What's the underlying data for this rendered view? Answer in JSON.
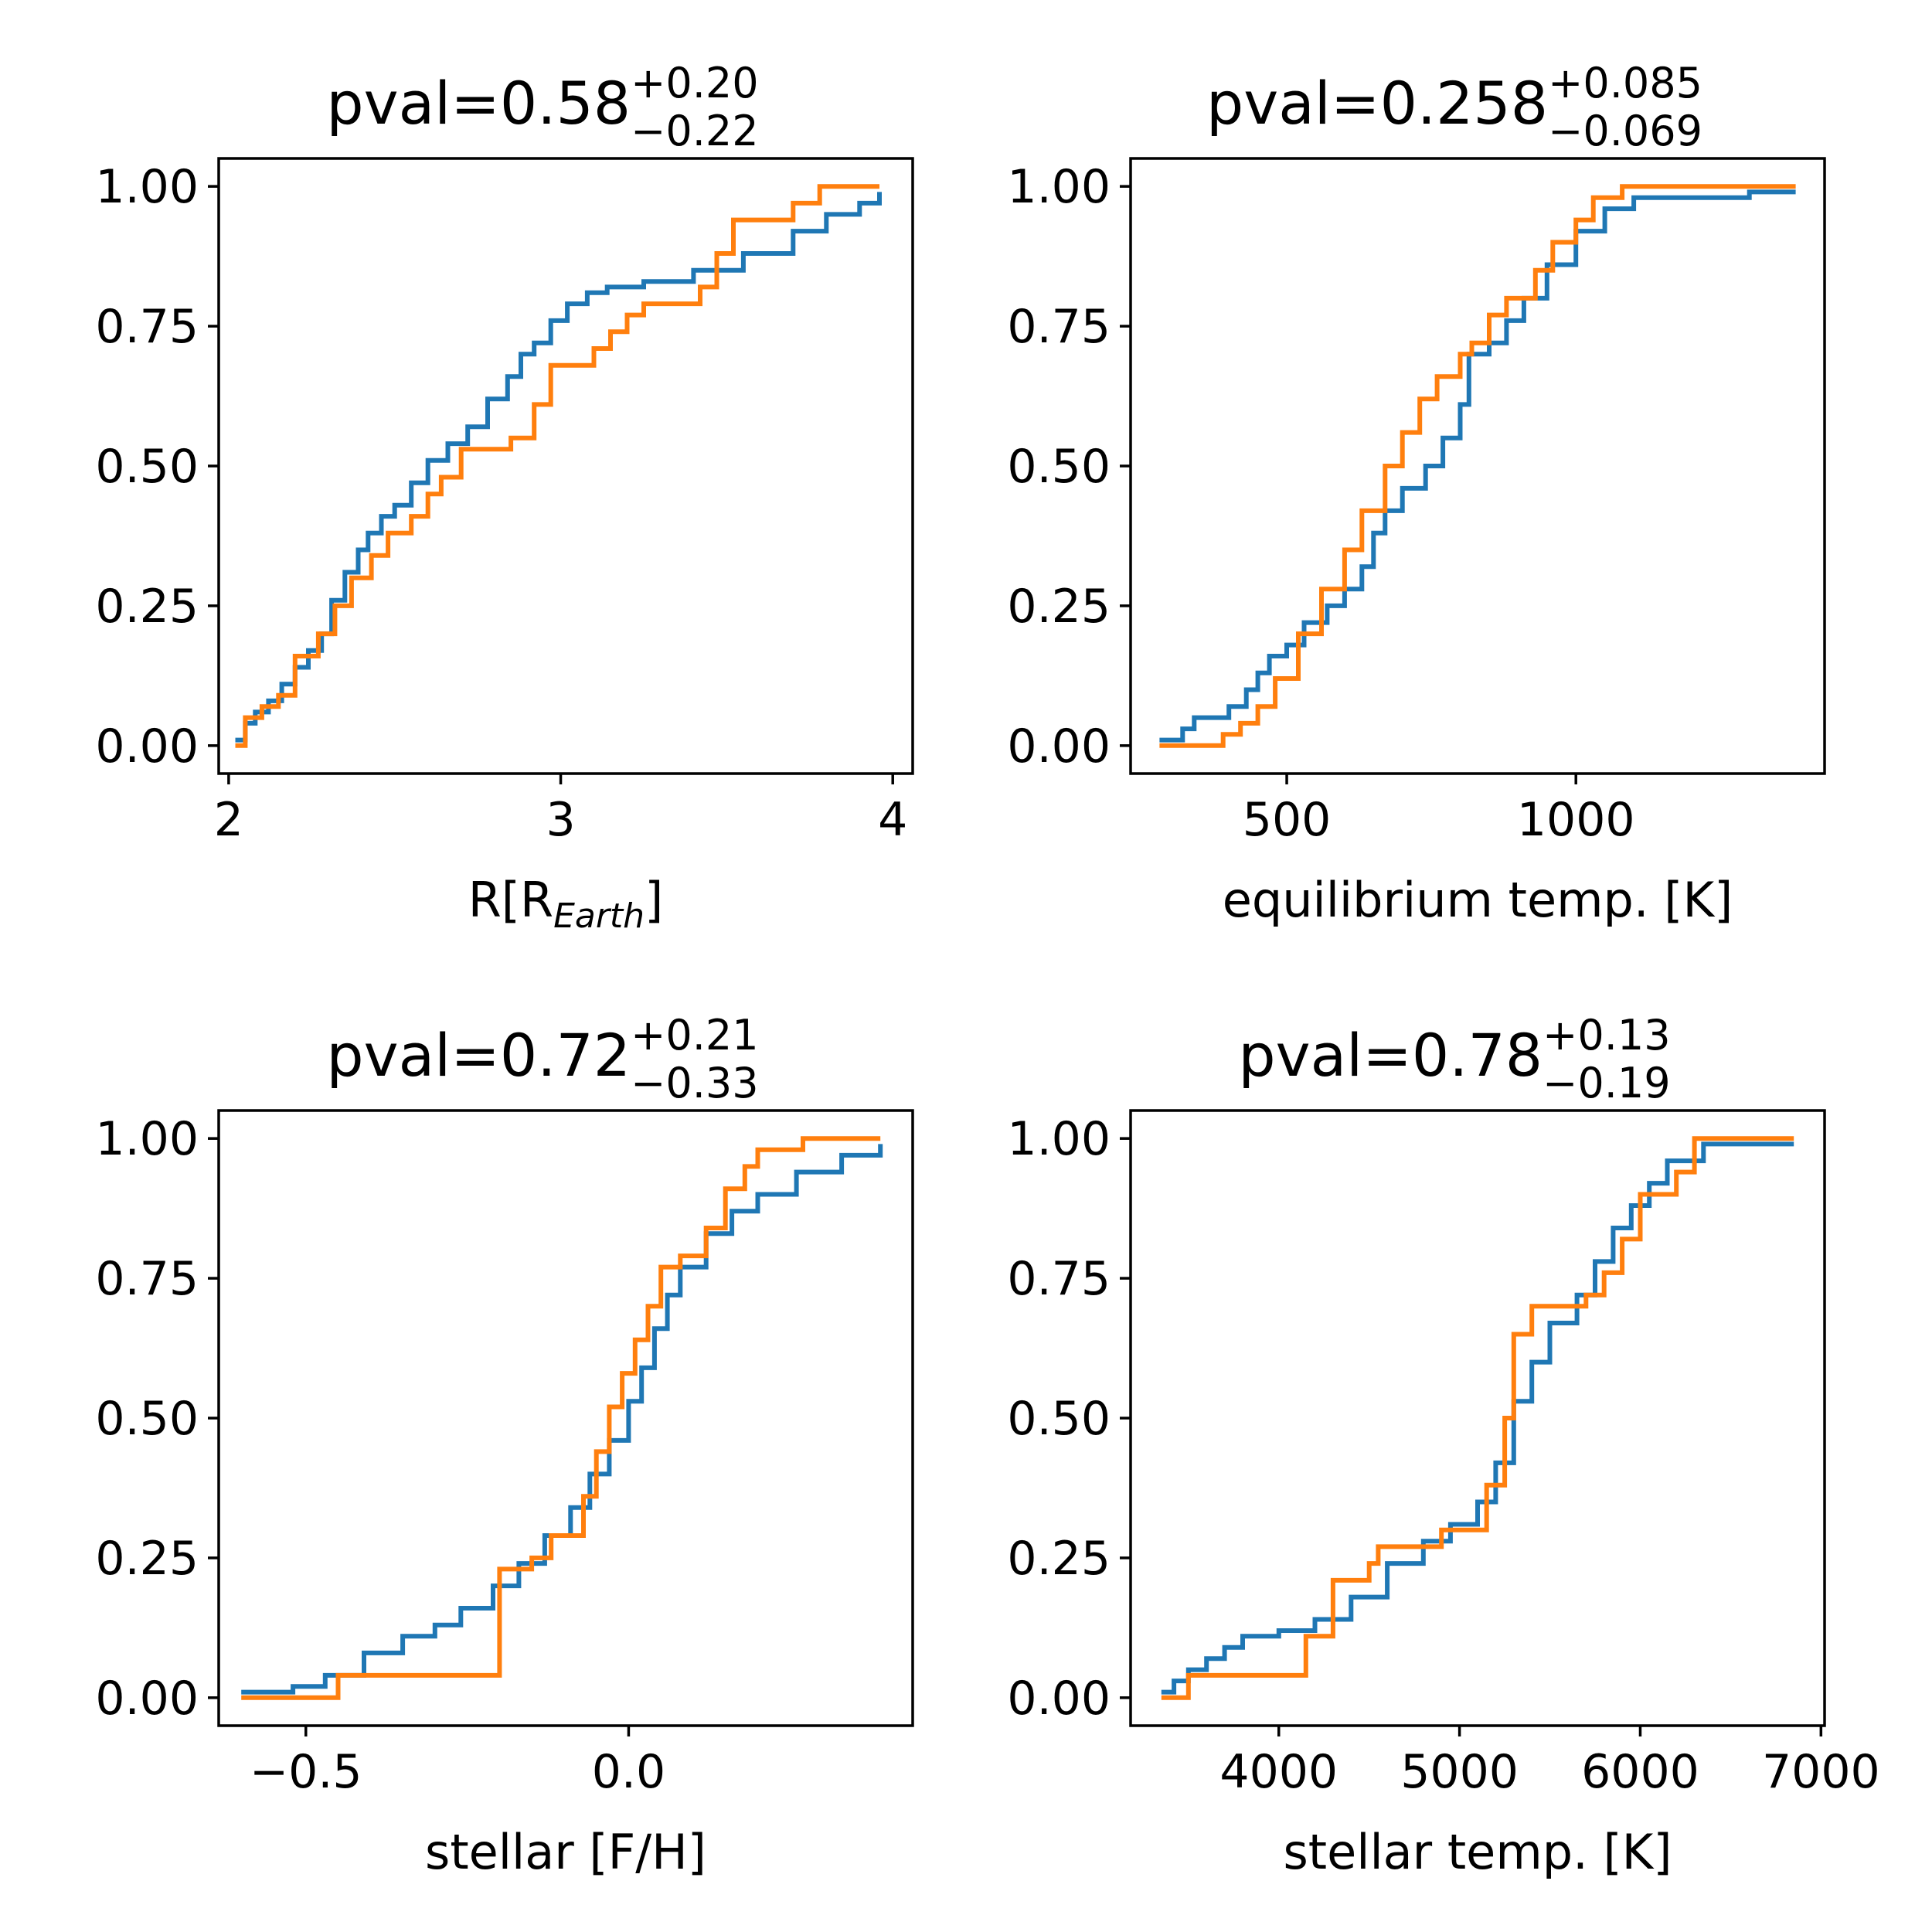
{
  "colors": {
    "blue": "#1f77b4",
    "orange": "#ff7f0e"
  },
  "chart_data": [
    {
      "type": "line",
      "title": {
        "main": "pval=0.58",
        "sup": "+0.20",
        "sub": "−0.22"
      },
      "xlabel": {
        "main": "R[R",
        "sub": "Earth",
        "end": "]"
      },
      "ylabel": "",
      "xlim": [
        1.97,
        4.06
      ],
      "ylim": [
        -0.05,
        1.05
      ],
      "xticks": [
        2,
        3,
        4
      ],
      "xtick_labels": [
        "2",
        "3",
        "4"
      ],
      "yticks": [
        0.0,
        0.25,
        0.5,
        0.75,
        1.0
      ],
      "ytick_labels": [
        "0.00",
        "0.25",
        "0.50",
        "0.75",
        "1.00"
      ],
      "series": [
        {
          "color": "#1f77b4",
          "x": [
            2.02,
            2.05,
            2.08,
            2.12,
            2.16,
            2.2,
            2.24,
            2.28,
            2.31,
            2.35,
            2.39,
            2.42,
            2.46,
            2.5,
            2.55,
            2.6,
            2.66,
            2.72,
            2.78,
            2.84,
            2.88,
            2.92,
            2.97,
            3.02,
            3.08,
            3.14,
            3.25,
            3.4,
            3.55,
            3.7,
            3.8,
            3.9,
            3.96
          ],
          "y": [
            0.01,
            0.04,
            0.06,
            0.08,
            0.11,
            0.14,
            0.17,
            0.2,
            0.26,
            0.31,
            0.35,
            0.38,
            0.41,
            0.43,
            0.47,
            0.51,
            0.54,
            0.57,
            0.62,
            0.66,
            0.7,
            0.72,
            0.76,
            0.79,
            0.81,
            0.82,
            0.83,
            0.85,
            0.88,
            0.92,
            0.95,
            0.97,
            0.99
          ]
        },
        {
          "color": "#ff7f0e",
          "x": [
            2.02,
            2.05,
            2.1,
            2.15,
            2.2,
            2.27,
            2.32,
            2.37,
            2.43,
            2.48,
            2.55,
            2.6,
            2.64,
            2.7,
            2.85,
            2.92,
            2.97,
            3.1,
            3.15,
            3.2,
            3.25,
            3.42,
            3.47,
            3.52,
            3.7,
            3.78,
            3.96
          ],
          "y": [
            0.0,
            0.05,
            0.07,
            0.09,
            0.16,
            0.2,
            0.25,
            0.3,
            0.34,
            0.38,
            0.41,
            0.45,
            0.48,
            0.53,
            0.55,
            0.61,
            0.68,
            0.71,
            0.74,
            0.77,
            0.79,
            0.82,
            0.88,
            0.94,
            0.97,
            1.0,
            1.0
          ]
        }
      ]
    },
    {
      "type": "line",
      "title": {
        "main": "pval=0.258",
        "sup": "+0.085",
        "sub": "−0.069"
      },
      "xlabel": {
        "main": "equilibrium temp. [K]",
        "sub": "",
        "end": ""
      },
      "ylabel": "",
      "xlim": [
        230,
        1430
      ],
      "ylim": [
        -0.05,
        1.05
      ],
      "xticks": [
        500,
        1000
      ],
      "xtick_labels": [
        "500",
        "1000"
      ],
      "yticks": [
        0.0,
        0.25,
        0.5,
        0.75,
        1.0
      ],
      "ytick_labels": [
        "0.00",
        "0.25",
        "0.50",
        "0.75",
        "1.00"
      ],
      "series": [
        {
          "color": "#1f77b4",
          "x": [
            280,
            320,
            340,
            400,
            430,
            450,
            470,
            500,
            530,
            570,
            600,
            630,
            650,
            670,
            700,
            740,
            770,
            800,
            815,
            850,
            880,
            910,
            950,
            1000,
            1050,
            1100,
            1200,
            1300,
            1380
          ],
          "y": [
            0.01,
            0.03,
            0.05,
            0.07,
            0.1,
            0.13,
            0.16,
            0.18,
            0.22,
            0.25,
            0.28,
            0.32,
            0.38,
            0.42,
            0.46,
            0.5,
            0.55,
            0.61,
            0.7,
            0.72,
            0.76,
            0.8,
            0.86,
            0.92,
            0.96,
            0.98,
            0.98,
            0.99,
            0.99
          ]
        },
        {
          "color": "#ff7f0e",
          "x": [
            280,
            390,
            420,
            450,
            480,
            520,
            560,
            600,
            630,
            670,
            700,
            730,
            760,
            800,
            820,
            850,
            880,
            930,
            960,
            1000,
            1030,
            1080,
            1380
          ],
          "y": [
            0.0,
            0.02,
            0.04,
            0.07,
            0.12,
            0.2,
            0.28,
            0.35,
            0.42,
            0.5,
            0.56,
            0.62,
            0.66,
            0.7,
            0.72,
            0.77,
            0.8,
            0.85,
            0.9,
            0.94,
            0.98,
            1.0,
            1.0
          ]
        }
      ]
    },
    {
      "type": "line",
      "title": {
        "main": "pval=0.72",
        "sup": "+0.21",
        "sub": "−0.33"
      },
      "xlabel": {
        "main": "stellar [F/H]",
        "sub": "",
        "end": ""
      },
      "ylabel": "",
      "xlim": [
        -0.635,
        0.44
      ],
      "ylim": [
        -0.05,
        1.05
      ],
      "xticks": [
        -0.5,
        0.0
      ],
      "xtick_labels": [
        "−0.5",
        "0.0"
      ],
      "yticks": [
        0.0,
        0.25,
        0.5,
        0.75,
        1.0
      ],
      "ytick_labels": [
        "0.00",
        "0.25",
        "0.50",
        "0.75",
        "1.00"
      ],
      "series": [
        {
          "color": "#1f77b4",
          "x": [
            -0.6,
            -0.52,
            -0.47,
            -0.41,
            -0.35,
            -0.3,
            -0.26,
            -0.21,
            -0.17,
            -0.13,
            -0.09,
            -0.06,
            -0.03,
            0.0,
            0.02,
            0.04,
            0.06,
            0.08,
            0.12,
            0.16,
            0.2,
            0.26,
            0.33,
            0.39
          ],
          "y": [
            0.01,
            0.02,
            0.04,
            0.08,
            0.11,
            0.13,
            0.16,
            0.2,
            0.24,
            0.29,
            0.34,
            0.4,
            0.46,
            0.53,
            0.59,
            0.66,
            0.72,
            0.77,
            0.83,
            0.87,
            0.9,
            0.94,
            0.97,
            0.99
          ]
        },
        {
          "color": "#ff7f0e",
          "x": [
            -0.6,
            -0.5,
            -0.45,
            -0.23,
            -0.2,
            -0.15,
            -0.12,
            -0.07,
            -0.05,
            -0.03,
            -0.01,
            0.01,
            0.03,
            0.05,
            0.08,
            0.12,
            0.15,
            0.18,
            0.2,
            0.27,
            0.39
          ],
          "y": [
            0.0,
            0.0,
            0.04,
            0.04,
            0.23,
            0.25,
            0.29,
            0.36,
            0.44,
            0.52,
            0.58,
            0.64,
            0.7,
            0.77,
            0.79,
            0.84,
            0.91,
            0.95,
            0.98,
            1.0,
            1.0
          ]
        }
      ]
    },
    {
      "type": "line",
      "title": {
        "main": "pval=0.78",
        "sup": "+0.13",
        "sub": "−0.19"
      },
      "xlabel": {
        "main": "stellar temp. [K]",
        "sub": "",
        "end": ""
      },
      "ylabel": "",
      "xlim": [
        3180,
        7020
      ],
      "ylim": [
        -0.05,
        1.05
      ],
      "xticks": [
        4000,
        5000,
        6000,
        7000
      ],
      "xtick_labels": [
        "4000",
        "5000",
        "6000",
        "7000"
      ],
      "yticks": [
        0.0,
        0.25,
        0.5,
        0.75,
        1.0
      ],
      "ytick_labels": [
        "0.00",
        "0.25",
        "0.50",
        "0.75",
        "1.00"
      ],
      "series": [
        {
          "color": "#1f77b4",
          "x": [
            3350,
            3420,
            3500,
            3600,
            3700,
            3800,
            4000,
            4200,
            4400,
            4600,
            4800,
            4950,
            5100,
            5200,
            5300,
            5400,
            5500,
            5650,
            5750,
            5850,
            5950,
            6050,
            6150,
            6350,
            6850
          ],
          "y": [
            0.01,
            0.03,
            0.05,
            0.07,
            0.09,
            0.11,
            0.12,
            0.14,
            0.18,
            0.24,
            0.28,
            0.31,
            0.35,
            0.42,
            0.53,
            0.6,
            0.67,
            0.72,
            0.78,
            0.84,
            0.88,
            0.92,
            0.96,
            0.99,
            0.99
          ]
        },
        {
          "color": "#ff7f0e",
          "x": [
            3350,
            3500,
            4100,
            4150,
            4300,
            4500,
            4550,
            4900,
            5150,
            5250,
            5300,
            5400,
            5600,
            5700,
            5800,
            5900,
            6000,
            6200,
            6300,
            6850
          ],
          "y": [
            0.0,
            0.04,
            0.04,
            0.11,
            0.21,
            0.24,
            0.27,
            0.3,
            0.38,
            0.5,
            0.65,
            0.7,
            0.7,
            0.72,
            0.76,
            0.82,
            0.9,
            0.94,
            1.0,
            1.0
          ]
        }
      ]
    }
  ]
}
